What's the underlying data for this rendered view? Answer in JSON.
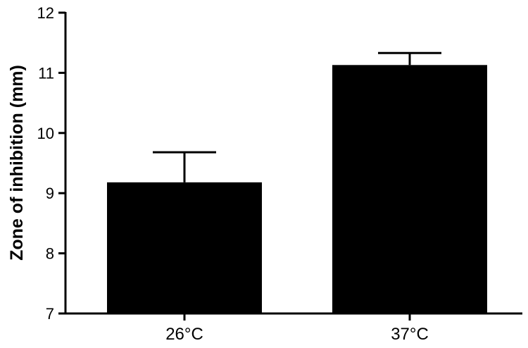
{
  "chart_data": {
    "type": "bar",
    "categories": [
      "26°C",
      "37°C"
    ],
    "values": [
      9.18,
      11.13
    ],
    "errors": [
      0.5,
      0.2
    ],
    "ylabel": "Zone of inhibition  (mm)",
    "xlabel": "",
    "ylim": [
      7,
      12
    ],
    "yticks": [
      7,
      8,
      9,
      10,
      11,
      12
    ],
    "grid": false,
    "bar_color": "#000000"
  }
}
